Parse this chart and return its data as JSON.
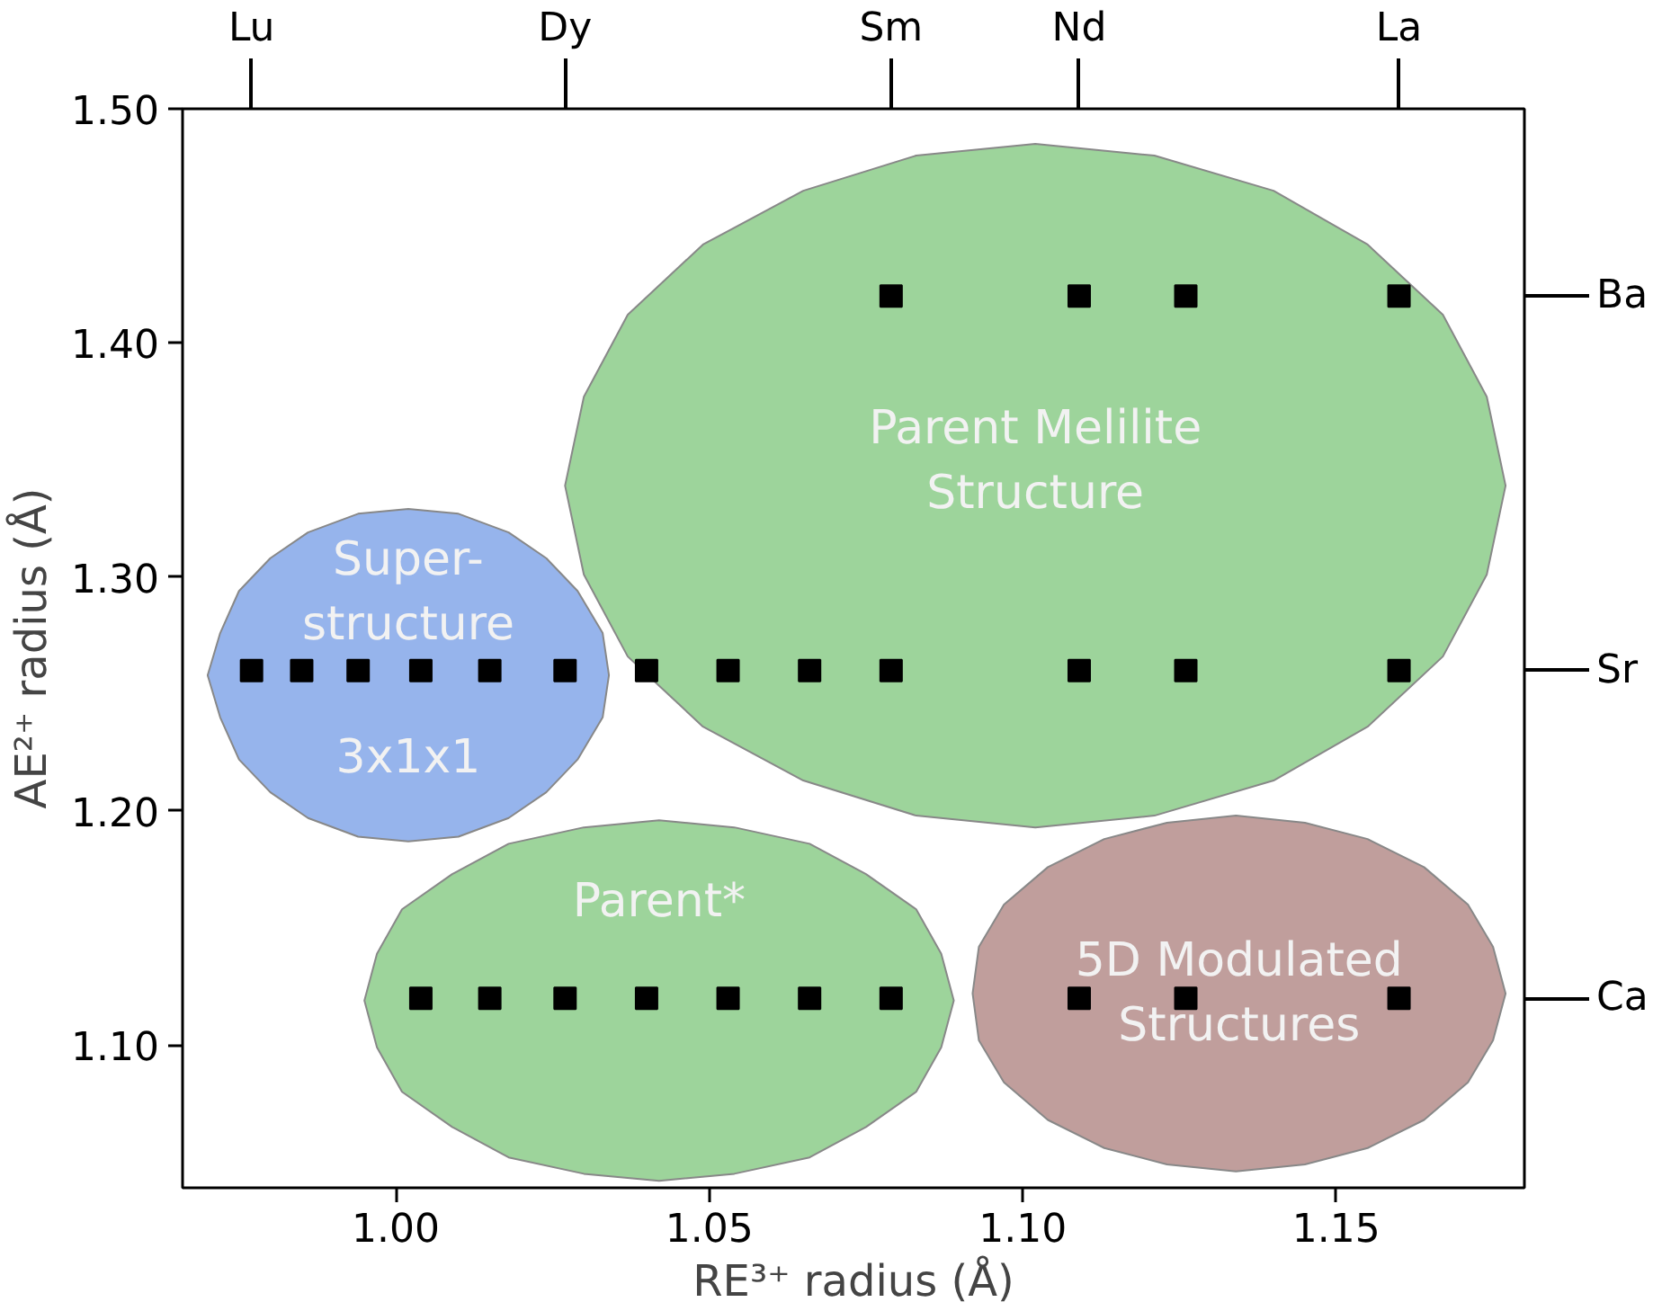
{
  "chart_data": {
    "type": "scatter",
    "xlabel": "RE³⁺ radius (Å)",
    "ylabel": "AE²⁺ radius (Å)",
    "xlim": [
      0.966,
      1.18
    ],
    "ylim": [
      1.039,
      1.5
    ],
    "xticks": [
      {
        "value": 1.0,
        "label": "1.00"
      },
      1.05,
      {
        "value": 1.1,
        "label": "1.10"
      },
      1.15
    ],
    "yticks": [
      {
        "value": 1.1,
        "label": "1.10"
      },
      {
        "value": 1.2,
        "label": "1.20"
      },
      {
        "value": 1.3,
        "label": "1.30"
      },
      {
        "value": 1.4,
        "label": "1.40"
      },
      {
        "value": 1.5,
        "label": "1.50"
      }
    ],
    "grid": false,
    "marker": "square",
    "legend": "right",
    "series": [
      {
        "type": "area",
        "marker": "none",
        "color": "#9dd49b",
        "x": [
          1.027,
          1.03,
          1.037,
          1.049,
          1.065,
          1.083,
          1.102,
          1.121,
          1.14,
          1.155,
          1.167,
          1.174,
          1.177,
          1.174,
          1.167,
          1.155,
          1.14,
          1.121,
          1.102,
          1.083,
          1.065,
          1.049,
          1.037,
          1.03
        ],
        "values": [
          1.339,
          1.377,
          1.412,
          1.442,
          1.465,
          1.48,
          1.485,
          1.48,
          1.465,
          1.442,
          1.412,
          1.377,
          1.339,
          1.301,
          1.266,
          1.236,
          1.213,
          1.198,
          1.193,
          1.198,
          1.213,
          1.236,
          1.266,
          1.301
        ]
      },
      {
        "type": "area",
        "marker": "none",
        "color": "#96b4ec",
        "x": [
          0.97,
          0.972,
          0.975,
          0.98,
          0.986,
          0.994,
          1.002,
          1.01,
          1.018,
          1.024,
          1.029,
          1.033,
          1.034,
          1.033,
          1.029,
          1.024,
          1.018,
          1.01,
          1.002,
          0.994,
          0.986,
          0.98,
          0.975,
          0.972
        ],
        "values": [
          1.258,
          1.276,
          1.294,
          1.308,
          1.319,
          1.327,
          1.329,
          1.327,
          1.319,
          1.308,
          1.294,
          1.276,
          1.258,
          1.24,
          1.222,
          1.208,
          1.197,
          1.189,
          1.187,
          1.189,
          1.197,
          1.208,
          1.222,
          1.24
        ]
      },
      {
        "type": "area",
        "marker": "none",
        "color": "#9dd49b",
        "x": [
          0.995,
          0.997,
          1.001,
          1.009,
          1.018,
          1.03,
          1.042,
          1.054,
          1.066,
          1.075,
          1.083,
          1.087,
          1.089,
          1.087,
          1.083,
          1.075,
          1.066,
          1.054,
          1.042,
          1.03,
          1.018,
          1.009,
          1.001,
          0.997
        ],
        "values": [
          1.119,
          1.139,
          1.158,
          1.173,
          1.186,
          1.193,
          1.196,
          1.193,
          1.186,
          1.173,
          1.158,
          1.139,
          1.119,
          1.099,
          1.08,
          1.065,
          1.052,
          1.045,
          1.042,
          1.045,
          1.052,
          1.065,
          1.08,
          1.099
        ]
      },
      {
        "type": "area",
        "marker": "none",
        "color": "#c09e9c",
        "x": [
          1.092,
          1.093,
          1.097,
          1.104,
          1.113,
          1.123,
          1.134,
          1.145,
          1.155,
          1.164,
          1.171,
          1.175,
          1.177,
          1.175,
          1.171,
          1.164,
          1.155,
          1.145,
          1.134,
          1.123,
          1.113,
          1.104,
          1.097,
          1.093
        ],
        "values": [
          1.122,
          1.142,
          1.16,
          1.176,
          1.188,
          1.195,
          1.198,
          1.195,
          1.188,
          1.176,
          1.16,
          1.142,
          1.122,
          1.102,
          1.084,
          1.068,
          1.056,
          1.049,
          1.046,
          1.049,
          1.056,
          1.068,
          1.084,
          1.102
        ]
      },
      {
        "name": "Ba",
        "color": "#000000",
        "x": [
          1.079,
          1.109,
          1.126,
          1.16
        ],
        "values": [
          1.42,
          1.42,
          1.42,
          1.42
        ]
      },
      {
        "name": "Sr",
        "color": "#000000",
        "x": [
          0.977,
          0.985,
          0.994,
          1.004,
          1.015,
          1.027,
          1.04,
          1.053,
          1.066,
          1.079,
          1.109,
          1.126,
          1.16
        ],
        "values": [
          1.26,
          1.26,
          1.26,
          1.26,
          1.26,
          1.26,
          1.26,
          1.26,
          1.26,
          1.26,
          1.26,
          1.26,
          1.26
        ]
      },
      {
        "name": "Ca",
        "color": "#000000",
        "x": [
          1.004,
          1.015,
          1.027,
          1.04,
          1.053,
          1.066,
          1.079,
          1.109,
          1.126,
          1.16
        ],
        "values": [
          1.12,
          1.12,
          1.12,
          1.12,
          1.12,
          1.12,
          1.12,
          1.12,
          1.12,
          1.12
        ]
      }
    ],
    "annotations": [
      "Parent Melilite\nStructure",
      "Super-\nstructure",
      "3x1x1",
      "Parent*",
      "5D Modulated\nStructures",
      {
        "text": "Lu",
        "x": 0.977
      },
      {
        "text": "Dy",
        "x": 1.027
      },
      {
        "text": "Sm",
        "x": 1.079
      },
      {
        "text": "Nd",
        "x": 1.109
      },
      {
        "text": "La",
        "x": 1.16
      }
    ]
  }
}
